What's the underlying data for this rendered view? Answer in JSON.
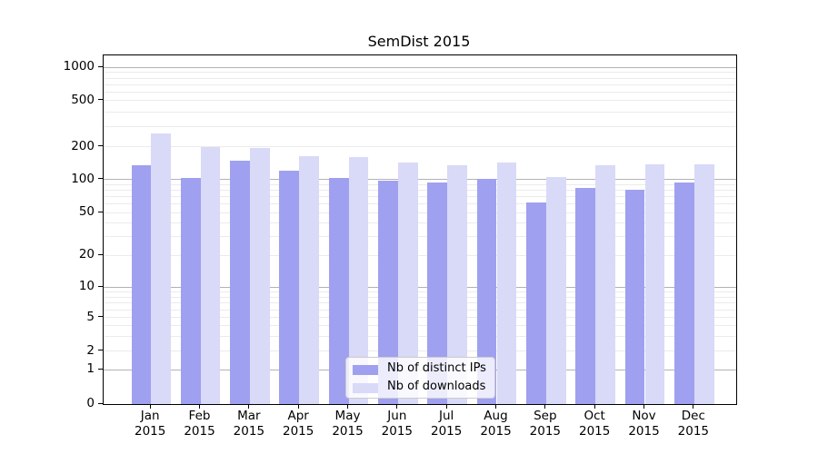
{
  "chart_data": {
    "type": "bar",
    "title": "SemDist 2015",
    "categories": [
      "Jan",
      "Feb",
      "Mar",
      "Apr",
      "May",
      "Jun",
      "Jul",
      "Aug",
      "Sep",
      "Oct",
      "Nov",
      "Dec"
    ],
    "year_label": "2015",
    "series": [
      {
        "name": "Nb of distinct IPs",
        "color": "#a0a0f0",
        "values": [
          135,
          103,
          150,
          121,
          103,
          97,
          93,
          101,
          62,
          83,
          80,
          93
        ]
      },
      {
        "name": "Nb of downloads",
        "color": "#d9d9f8",
        "values": [
          260,
          200,
          197,
          163,
          160,
          143,
          136,
          142,
          104,
          136,
          138,
          138
        ]
      }
    ],
    "yticks": [
      0,
      1,
      2,
      5,
      10,
      20,
      50,
      100,
      200,
      500,
      1000
    ],
    "yscale": "symlog",
    "ylim": [
      0,
      1300
    ],
    "xlabel": "",
    "ylabel": "",
    "grid": {
      "horizontal": true,
      "minor_log_lines": true
    },
    "legend": {
      "position": "lower center"
    }
  },
  "colors": {
    "background": "#ffffff",
    "spine": "#000000",
    "grid_major": "#b2b2b2",
    "grid_minor": "#ebebeb",
    "legend_border": "#cccccc",
    "bar_ips": "#a0a0f0",
    "bar_downloads": "#d9d9f8"
  }
}
